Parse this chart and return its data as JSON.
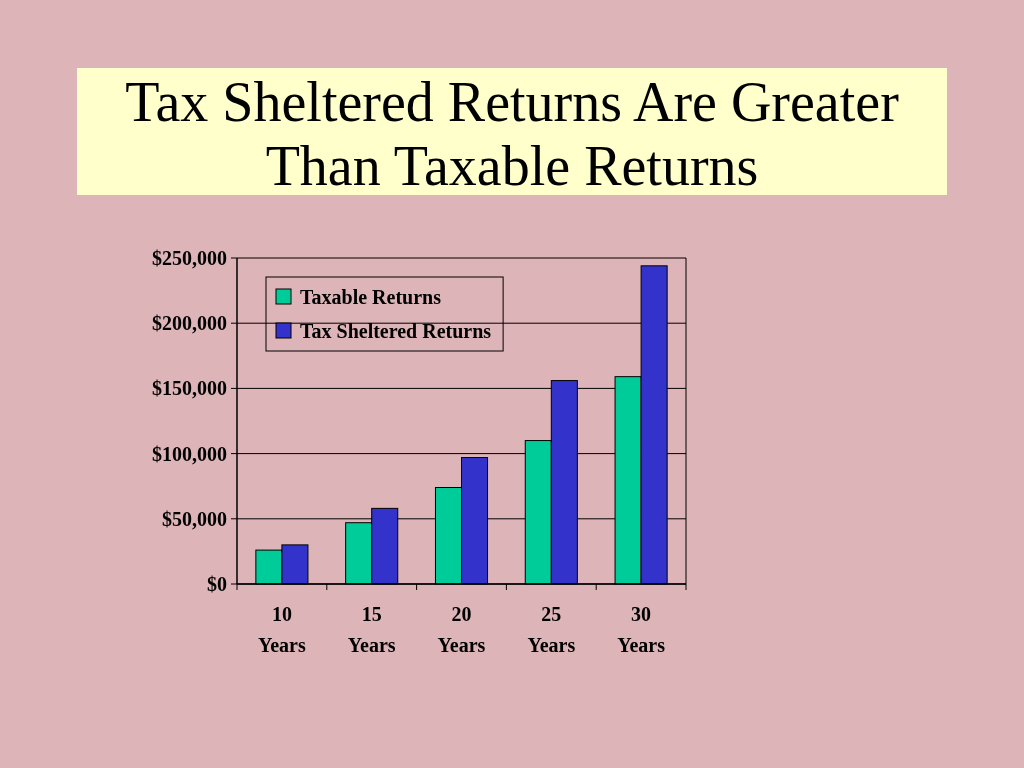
{
  "chart_data": {
    "type": "bar",
    "title": "Tax Sheltered Returns Are Greater Than Taxable Returns",
    "categories": [
      "10 Years",
      "15 Years",
      "20 Years",
      "25 Years",
      "30 Years"
    ],
    "series": [
      {
        "name": "Taxable Returns",
        "color": "#00cc99",
        "values": [
          26000,
          47000,
          74000,
          110000,
          159000
        ]
      },
      {
        "name": "Tax Sheltered Returns",
        "color": "#3333cc",
        "values": [
          30000,
          58000,
          97000,
          156000,
          244000
        ]
      }
    ],
    "ylim": [
      0,
      250000
    ],
    "yticks": [
      {
        "value": 0,
        "label": "$0"
      },
      {
        "value": 50000,
        "label": "$50,000"
      },
      {
        "value": 100000,
        "label": "$100,000"
      },
      {
        "value": 150000,
        "label": "$150,000"
      },
      {
        "value": 200000,
        "label": "$200,000"
      },
      {
        "value": 250000,
        "label": "$250,000"
      }
    ],
    "grid": "y",
    "legend": "top left"
  }
}
